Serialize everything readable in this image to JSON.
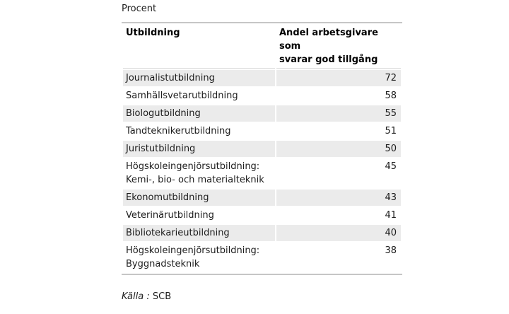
{
  "meta": {
    "unit_label": "Procent",
    "source_prefix": "Källa :",
    "source_value": "SCB"
  },
  "table": {
    "headers": {
      "col1": "Utbildning",
      "col2": "Andel arbetsgivare som\nsvarar god tillgång"
    },
    "rows": [
      {
        "label": "Journalistutbildning",
        "value": "72"
      },
      {
        "label": "Samhällsvetarutbildning",
        "value": "58"
      },
      {
        "label": "Biologutbildning",
        "value": "55"
      },
      {
        "label": "Tandteknikerutbildning",
        "value": "51"
      },
      {
        "label": "Juristutbildning",
        "value": "50"
      },
      {
        "label": "Högskoleingenjörsutbildning:\nKemi-, bio- och materialteknik",
        "value": "45"
      },
      {
        "label": "Ekonomutbildning",
        "value": "43"
      },
      {
        "label": "Veterinärutbildning",
        "value": "41"
      },
      {
        "label": "Bibliotekarieutbildning",
        "value": "40"
      },
      {
        "label": "Högskoleingenjörsutbildning:\nByggnadsteknik",
        "value": "38"
      }
    ]
  },
  "chart_data": {
    "type": "table",
    "title": "Procent",
    "columns": [
      "Utbildning",
      "Andel arbetsgivare som svarar god tillgång"
    ],
    "rows": [
      [
        "Journalistutbildning",
        72
      ],
      [
        "Samhällsvetarutbildning",
        58
      ],
      [
        "Biologutbildning",
        55
      ],
      [
        "Tandteknikerutbildning",
        51
      ],
      [
        "Juristutbildning",
        50
      ],
      [
        "Högskoleingenjörsutbildning: Kemi-, bio- och materialteknik",
        45
      ],
      [
        "Ekonomutbildning",
        43
      ],
      [
        "Veterinärutbildning",
        41
      ],
      [
        "Bibliotekarieutbildning",
        40
      ],
      [
        "Högskoleingenjörsutbildning: Byggnadsteknik",
        38
      ]
    ],
    "source": "Källa : SCB",
    "colors": {
      "row_shading": "#ebebeb",
      "outer_border": "#c6c6c6",
      "header_separator": "#d9d9d9",
      "text": "#1c1c1c"
    }
  }
}
